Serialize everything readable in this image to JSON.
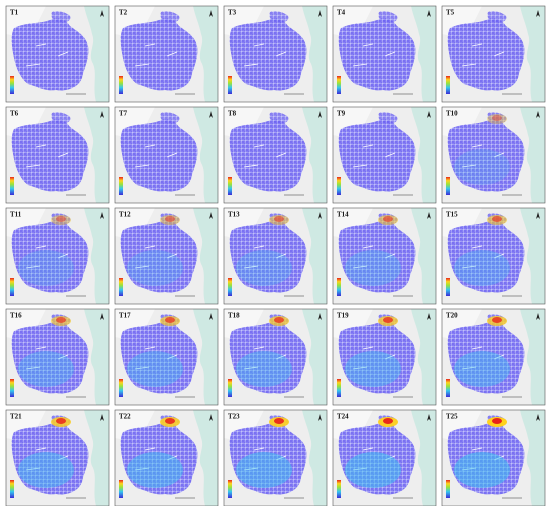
{
  "panels": [
    {
      "label": "T1"
    },
    {
      "label": "T2"
    },
    {
      "label": "T3"
    },
    {
      "label": "T4"
    },
    {
      "label": "T5"
    },
    {
      "label": "T6"
    },
    {
      "label": "T7"
    },
    {
      "label": "T8"
    },
    {
      "label": "T9"
    },
    {
      "label": "T10"
    },
    {
      "label": "T11"
    },
    {
      "label": "T12"
    },
    {
      "label": "T13"
    },
    {
      "label": "T14"
    },
    {
      "label": "T15"
    },
    {
      "label": "T16"
    },
    {
      "label": "T17"
    },
    {
      "label": "T18"
    },
    {
      "label": "T19"
    },
    {
      "label": "T20"
    },
    {
      "label": "T21"
    },
    {
      "label": "T22"
    },
    {
      "label": "T23"
    },
    {
      "label": "T24"
    },
    {
      "label": "T25"
    }
  ]
}
